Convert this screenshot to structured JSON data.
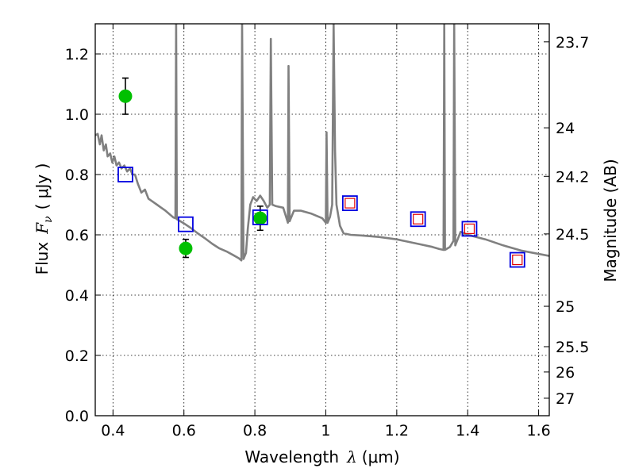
{
  "chart_data": {
    "type": "scatter",
    "xlabel": {
      "prefix": "Wavelength",
      "symbol": "λ",
      "unit": "(μm)"
    },
    "ylabel": {
      "prefix": "Flux",
      "symbol": "F",
      "sub": "ν",
      "unit": "( μJy )"
    },
    "y2label": "Magnitude (AB)",
    "xlim": [
      0.35,
      1.63
    ],
    "ylim": [
      0.0,
      1.3
    ],
    "grid": true,
    "x_ticks": [
      {
        "value": 0.4,
        "label": "0.4"
      },
      {
        "value": 0.6,
        "label": "0.6"
      },
      {
        "value": 0.8,
        "label": "0.8"
      },
      {
        "value": 1.0,
        "label": "1"
      },
      {
        "value": 1.2,
        "label": "1.2"
      },
      {
        "value": 1.4,
        "label": "1.4"
      },
      {
        "value": 1.6,
        "label": "1.6"
      }
    ],
    "y_ticks": [
      {
        "value": 0.0,
        "label": "0.0"
      },
      {
        "value": 0.2,
        "label": "0.2"
      },
      {
        "value": 0.4,
        "label": "0.4"
      },
      {
        "value": 0.6,
        "label": "0.6"
      },
      {
        "value": 0.8,
        "label": "0.8"
      },
      {
        "value": 1.0,
        "label": "1.0"
      },
      {
        "value": 1.2,
        "label": "1.2"
      }
    ],
    "mag_ticks": [
      {
        "label": "23.7",
        "flux": 1.24
      },
      {
        "label": "24",
        "flux": 0.955
      },
      {
        "label": "24.2",
        "flux": 0.794
      },
      {
        "label": "24.5",
        "flux": 0.603
      },
      {
        "label": "25",
        "flux": 0.363
      },
      {
        "label": "25.5",
        "flux": 0.229
      },
      {
        "label": "26",
        "flux": 0.145
      },
      {
        "label": "27",
        "flux": 0.058
      }
    ],
    "model_spectrum": {
      "color": "#808080",
      "points": [
        [
          0.35,
          0.93
        ],
        [
          0.357,
          0.935
        ],
        [
          0.363,
          0.9
        ],
        [
          0.368,
          0.93
        ],
        [
          0.374,
          0.88
        ],
        [
          0.38,
          0.9
        ],
        [
          0.385,
          0.86
        ],
        [
          0.392,
          0.87
        ],
        [
          0.398,
          0.84
        ],
        [
          0.404,
          0.86
        ],
        [
          0.41,
          0.83
        ],
        [
          0.417,
          0.84
        ],
        [
          0.424,
          0.82
        ],
        [
          0.432,
          0.83
        ],
        [
          0.44,
          0.81
        ],
        [
          0.448,
          0.82
        ],
        [
          0.455,
          0.8
        ],
        [
          0.462,
          0.8
        ],
        [
          0.47,
          0.77
        ],
        [
          0.48,
          0.74
        ],
        [
          0.49,
          0.75
        ],
        [
          0.5,
          0.72
        ],
        [
          0.512,
          0.71
        ],
        [
          0.524,
          0.7
        ],
        [
          0.536,
          0.69
        ],
        [
          0.548,
          0.68
        ],
        [
          0.56,
          0.668
        ],
        [
          0.57,
          0.658
        ],
        [
          0.576,
          0.655
        ],
        [
          0.578,
          1.3
        ],
        [
          0.58,
          0.652
        ],
        [
          0.59,
          0.645
        ],
        [
          0.6,
          0.638
        ],
        [
          0.62,
          0.622
        ],
        [
          0.64,
          0.604
        ],
        [
          0.66,
          0.588
        ],
        [
          0.68,
          0.57
        ],
        [
          0.7,
          0.555
        ],
        [
          0.72,
          0.545
        ],
        [
          0.74,
          0.532
        ],
        [
          0.755,
          0.522
        ],
        [
          0.762,
          0.515
        ],
        [
          0.764,
          1.3
        ],
        [
          0.768,
          0.52
        ],
        [
          0.775,
          0.54
        ],
        [
          0.78,
          0.62
        ],
        [
          0.787,
          0.7
        ],
        [
          0.795,
          0.725
        ],
        [
          0.805,
          0.712
        ],
        [
          0.815,
          0.73
        ],
        [
          0.825,
          0.712
        ],
        [
          0.835,
          0.69
        ],
        [
          0.842,
          0.7
        ],
        [
          0.845,
          1.25
        ],
        [
          0.849,
          0.7
        ],
        [
          0.86,
          0.695
        ],
        [
          0.88,
          0.69
        ],
        [
          0.893,
          0.64
        ],
        [
          0.895,
          1.16
        ],
        [
          0.898,
          0.645
        ],
        [
          0.91,
          0.68
        ],
        [
          0.93,
          0.68
        ],
        [
          0.96,
          0.67
        ],
        [
          0.99,
          0.655
        ],
        [
          1.0,
          0.64
        ],
        [
          1.002,
          0.94
        ],
        [
          1.005,
          0.64
        ],
        [
          1.012,
          0.66
        ],
        [
          1.018,
          0.7
        ],
        [
          1.022,
          1.3
        ],
        [
          1.026,
          0.88
        ],
        [
          1.03,
          0.7
        ],
        [
          1.04,
          0.63
        ],
        [
          1.05,
          0.605
        ],
        [
          1.07,
          0.6
        ],
        [
          1.1,
          0.598
        ],
        [
          1.15,
          0.593
        ],
        [
          1.2,
          0.585
        ],
        [
          1.26,
          0.57
        ],
        [
          1.3,
          0.56
        ],
        [
          1.32,
          0.553
        ],
        [
          1.332,
          0.55
        ],
        [
          1.334,
          1.3
        ],
        [
          1.336,
          0.55
        ],
        [
          1.35,
          0.56
        ],
        [
          1.36,
          0.58
        ],
        [
          1.362,
          1.3
        ],
        [
          1.365,
          0.565
        ],
        [
          1.38,
          0.61
        ],
        [
          1.4,
          0.6
        ],
        [
          1.45,
          0.585
        ],
        [
          1.5,
          0.565
        ],
        [
          1.55,
          0.548
        ],
        [
          1.63,
          0.53
        ]
      ]
    },
    "series": [
      {
        "marker": "circle",
        "color": "#00c000",
        "points": [
          {
            "x": 0.435,
            "y": 1.06,
            "yerr": 0.06
          },
          {
            "x": 0.605,
            "y": 0.555,
            "yerr": 0.03
          },
          {
            "x": 0.815,
            "y": 0.655,
            "yerr": 0.04
          }
        ]
      },
      {
        "marker": "open-square",
        "color": "#0000e0",
        "points": [
          {
            "x": 0.435,
            "y": 0.8
          },
          {
            "x": 0.605,
            "y": 0.635
          },
          {
            "x": 0.815,
            "y": 0.658
          },
          {
            "x": 1.068,
            "y": 0.705
          },
          {
            "x": 1.26,
            "y": 0.652
          },
          {
            "x": 1.405,
            "y": 0.62
          },
          {
            "x": 1.54,
            "y": 0.517
          }
        ]
      },
      {
        "marker": "open-square-small",
        "color": "#e00000",
        "points": [
          {
            "x": 1.068,
            "y": 0.705
          },
          {
            "x": 1.26,
            "y": 0.652
          },
          {
            "x": 1.405,
            "y": 0.62
          },
          {
            "x": 1.54,
            "y": 0.517
          }
        ]
      }
    ]
  }
}
